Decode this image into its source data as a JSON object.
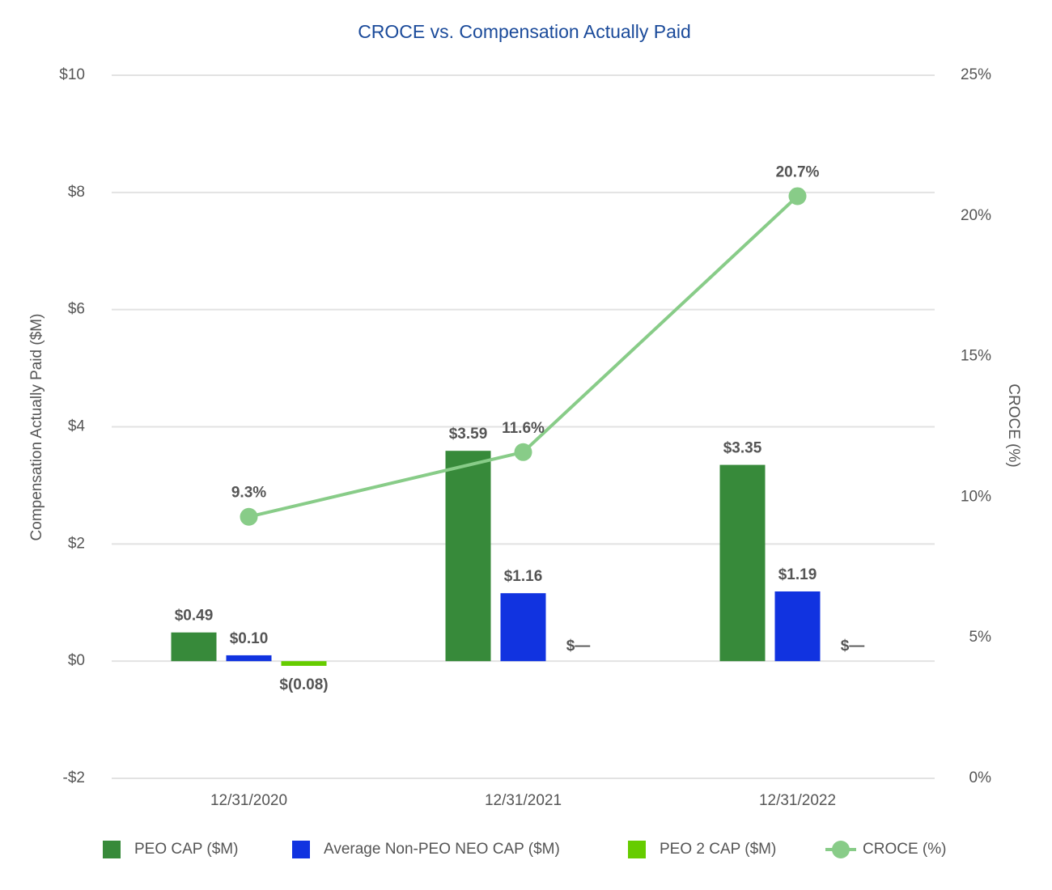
{
  "chart_data": {
    "type": "bar",
    "title": "CROCE vs. Compensation Actually Paid",
    "y_label": "Compensation Actually Paid ($M)",
    "y2_label": "CROCE (%)",
    "categories": [
      "12/31/2020",
      "12/31/2021",
      "12/31/2022"
    ],
    "series": [
      {
        "name": "PEO CAP ($M)",
        "color": "#378a3a",
        "values": [
          0.49,
          3.59,
          3.35
        ],
        "value_labels": [
          "$0.49",
          "$3.59",
          "$3.35"
        ]
      },
      {
        "name": "Average Non-PEO NEO CAP ($M)",
        "color": "#1133e0",
        "values": [
          0.1,
          1.16,
          1.19
        ],
        "value_labels": [
          "$0.10",
          "$1.16",
          "$1.19"
        ]
      },
      {
        "name": "PEO 2 CAP ($M)",
        "color": "#66cc00",
        "values": [
          -0.08,
          0,
          0
        ],
        "value_labels": [
          "$(0.08)",
          "$—",
          "$—"
        ]
      },
      {
        "name": "CROCE (%)",
        "color": "#88cc88",
        "type": "line",
        "axis": "y2",
        "values": [
          9.3,
          11.6,
          20.7
        ],
        "value_labels": [
          "9.3%",
          "11.6%",
          "20.7%"
        ]
      }
    ],
    "ylim": [
      -2,
      10
    ],
    "yticks": [
      {
        "value": -2,
        "label": "-$2"
      },
      {
        "value": 0,
        "label": "$0"
      },
      {
        "value": 2,
        "label": "$2"
      },
      {
        "value": 4,
        "label": "$4"
      },
      {
        "value": 6,
        "label": "$6"
      },
      {
        "value": 8,
        "label": "$8"
      },
      {
        "value": 10,
        "label": "$10"
      }
    ],
    "y2lim": [
      0,
      25
    ],
    "y2ticks": [
      {
        "value": 0,
        "label": "0%"
      },
      {
        "value": 5,
        "label": "5%"
      },
      {
        "value": 10,
        "label": "10%"
      },
      {
        "value": 15,
        "label": "15%"
      },
      {
        "value": 20,
        "label": "20%"
      },
      {
        "value": 25,
        "label": "25%"
      }
    ],
    "grid": true,
    "legend": "bottom"
  }
}
